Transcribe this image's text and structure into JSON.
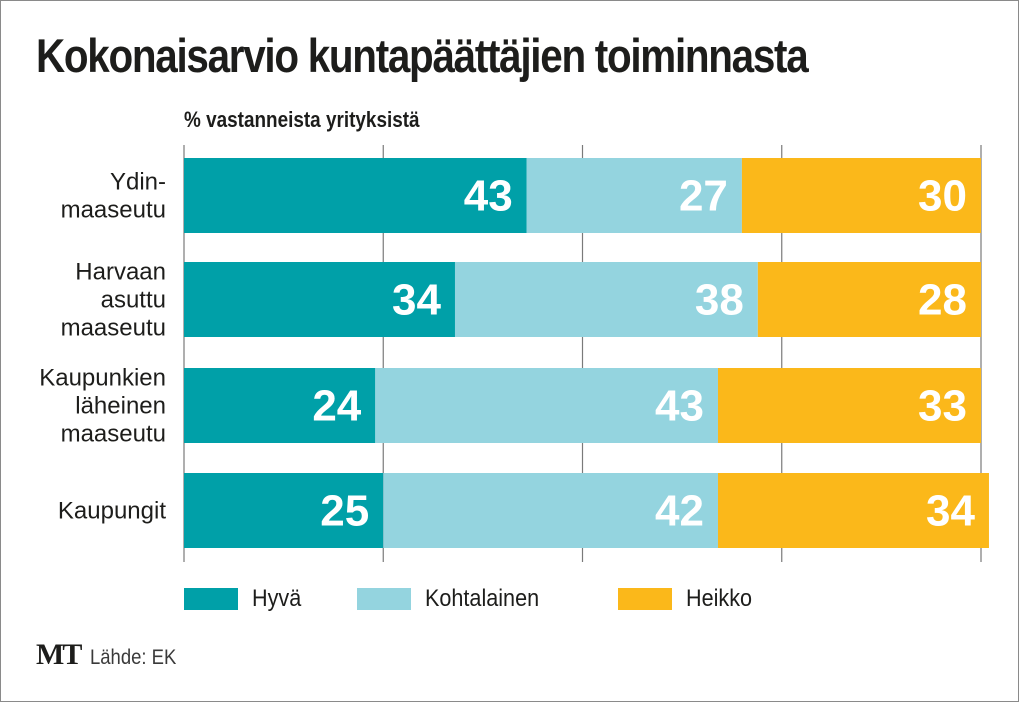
{
  "chart_data": {
    "type": "bar",
    "orientation": "horizontal",
    "stacked": true,
    "title": "Kokonaisarvio kuntapäättäjien toiminnasta",
    "subtitle": "% vastanneista yrityksistä",
    "xlabel": "",
    "ylabel": "",
    "xlim": [
      0,
      100
    ],
    "grid": true,
    "categories": [
      [
        "Ydin-",
        "maaseutu"
      ],
      [
        "Harvaan",
        "asuttu",
        "maaseutu"
      ],
      [
        "Kaupunkien",
        "läheinen",
        "maaseutu"
      ],
      [
        "Kaupungit"
      ]
    ],
    "series": [
      {
        "name": "Hyvä",
        "color": "#00a0a8",
        "values": [
          43,
          34,
          24,
          25
        ]
      },
      {
        "name": "Kohtalainen",
        "color": "#94d4df",
        "values": [
          27,
          38,
          43,
          42
        ]
      },
      {
        "name": "Heikko",
        "color": "#fbb81a",
        "values": [
          30,
          28,
          33,
          34
        ]
      }
    ],
    "legend_position": "bottom",
    "source": "Lähde: EK"
  },
  "footer": {
    "logo": "MT",
    "source": "Lähde: EK"
  },
  "colors": {
    "label_text": "#ffffff",
    "gridline": "#7a7a7a",
    "text": "#1d1d1b"
  }
}
